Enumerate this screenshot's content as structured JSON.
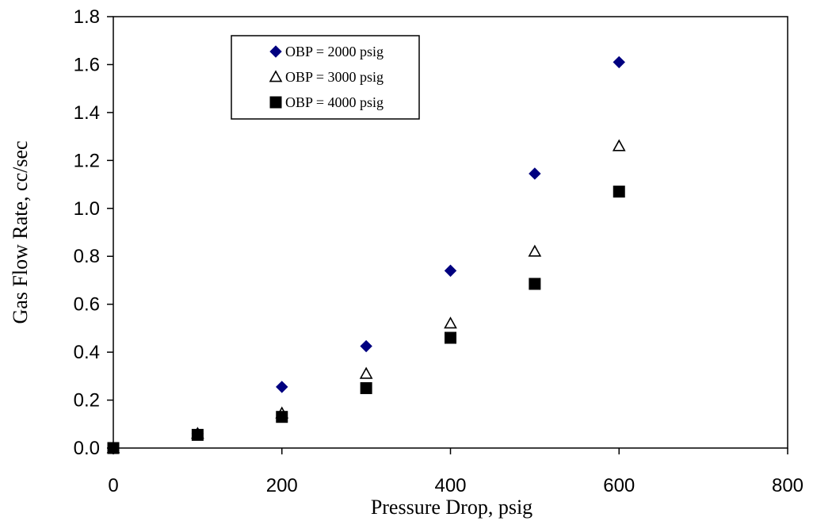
{
  "chart_data": {
    "type": "scatter",
    "xlabel": "Pressure Drop, psig",
    "ylabel": "Gas Flow Rate, cc/sec",
    "xlim": [
      0,
      800
    ],
    "ylim": [
      0,
      1.8
    ],
    "x_ticks": [
      "0",
      "200",
      "400",
      "600",
      "800"
    ],
    "y_ticks": [
      "0.0",
      "0.2",
      "0.4",
      "0.6",
      "0.8",
      "1.0",
      "1.2",
      "1.4",
      "1.6",
      "1.8"
    ],
    "grid": false,
    "legend_position": "top-left",
    "series": [
      {
        "name": "OBP = 2000 psig",
        "marker": "diamond",
        "color": "#000080",
        "points": [
          [
            0,
            0.0
          ],
          [
            100,
            0.06
          ],
          [
            200,
            0.255
          ],
          [
            300,
            0.425
          ],
          [
            400,
            0.74
          ],
          [
            500,
            1.145
          ],
          [
            600,
            1.61
          ]
        ]
      },
      {
        "name": "OBP = 3000 psig",
        "marker": "triangle-open",
        "color": "#000000",
        "points": [
          [
            0,
            0.0
          ],
          [
            100,
            0.06
          ],
          [
            200,
            0.145
          ],
          [
            300,
            0.31
          ],
          [
            400,
            0.52
          ],
          [
            500,
            0.82
          ],
          [
            600,
            1.26
          ]
        ]
      },
      {
        "name": "OBP = 4000 psig",
        "marker": "square",
        "color": "#000000",
        "points": [
          [
            0,
            0.0
          ],
          [
            100,
            0.055
          ],
          [
            200,
            0.13
          ],
          [
            300,
            0.25
          ],
          [
            400,
            0.46
          ],
          [
            500,
            0.685
          ],
          [
            600,
            1.07
          ]
        ]
      }
    ]
  }
}
